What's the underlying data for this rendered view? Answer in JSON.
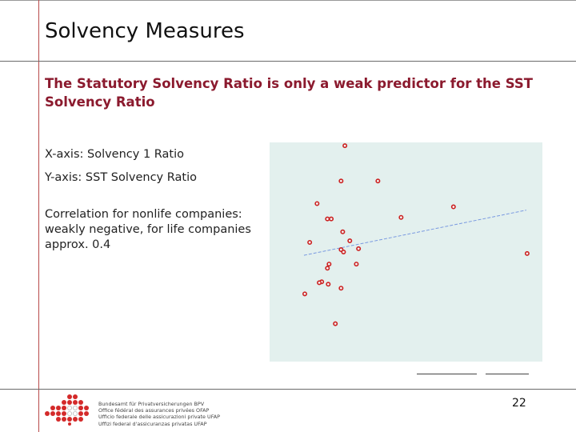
{
  "title": "Solvency Measures",
  "subtitle": "The Statutory Solvency Ratio is only a weak predictor for the SST Solvency Ratio",
  "text": {
    "xaxis": "X-axis: Solvency 1 Ratio",
    "yaxis": "Y-axis: SST Solvency Ratio",
    "correlation": "Correlation for nonlife companies: weakly negative, for life companies approx. 0.4"
  },
  "footer": {
    "page_number": "22",
    "org_lines": [
      "Bundesamt für Privatversicherungen BPV",
      "Office fédéral des assurances privées OFAP",
      "Ufficio federale delle assicurazioni private UFAP",
      "Uffizi federal d'assicuranzas privatas UFAP"
    ]
  },
  "chart_data": {
    "type": "scatter",
    "title": "",
    "xlabel": "",
    "ylabel": "",
    "xlim": [
      0,
      100
    ],
    "ylim": [
      0,
      100
    ],
    "grid": false,
    "background": "#e3f0ee",
    "marker_color": "#cc2222",
    "trend_color": "#7a9ae0",
    "points": [
      {
        "x": 27.6,
        "y": 98.5
      },
      {
        "x": 26.2,
        "y": 82.4
      },
      {
        "x": 39.7,
        "y": 82.4
      },
      {
        "x": 17.4,
        "y": 72.1
      },
      {
        "x": 67.4,
        "y": 70.6
      },
      {
        "x": 21.2,
        "y": 65.1
      },
      {
        "x": 22.6,
        "y": 65.1
      },
      {
        "x": 48.2,
        "y": 65.8
      },
      {
        "x": 26.8,
        "y": 59.2
      },
      {
        "x": 29.4,
        "y": 55.1
      },
      {
        "x": 14.7,
        "y": 54.4
      },
      {
        "x": 32.6,
        "y": 51.5
      },
      {
        "x": 26.2,
        "y": 51.1
      },
      {
        "x": 27.1,
        "y": 50.0
      },
      {
        "x": 94.4,
        "y": 49.3
      },
      {
        "x": 31.8,
        "y": 44.5
      },
      {
        "x": 21.8,
        "y": 44.5
      },
      {
        "x": 21.2,
        "y": 42.6
      },
      {
        "x": 19.1,
        "y": 36.4
      },
      {
        "x": 18.2,
        "y": 36.0
      },
      {
        "x": 21.5,
        "y": 35.3
      },
      {
        "x": 26.2,
        "y": 33.5
      },
      {
        "x": 12.9,
        "y": 30.9
      },
      {
        "x": 24.1,
        "y": 17.3
      }
    ],
    "trendline": {
      "x": [
        12.6,
        94.1
      ],
      "y": [
        48.5,
        69.1
      ]
    }
  }
}
